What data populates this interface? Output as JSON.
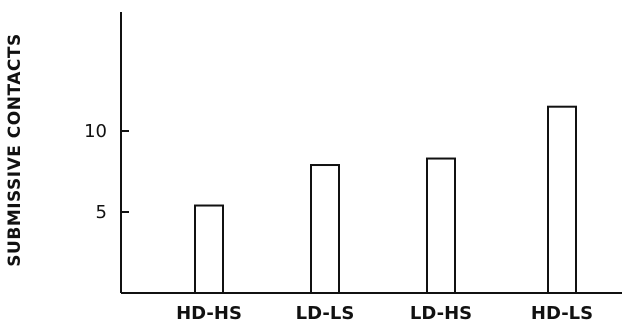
{
  "chart_data": {
    "type": "bar",
    "categories": [
      "HD-HS",
      "LD-LS",
      "LD-HS",
      "HD-LS"
    ],
    "values": [
      5.4,
      7.9,
      8.3,
      11.5
    ],
    "title": "",
    "xlabel": "",
    "ylabel": "SUBMISSIVE CONTACTS",
    "ylim": [
      0,
      15
    ],
    "yticks": [
      5,
      10
    ],
    "grid": false,
    "legend": "none",
    "colors": {
      "bar_fill": "#ffffff",
      "bar_stroke": "#111111",
      "axis": "#111111",
      "background": "#ffffff"
    }
  }
}
